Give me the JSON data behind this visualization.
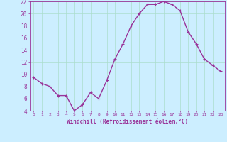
{
  "x": [
    0,
    1,
    2,
    3,
    4,
    5,
    6,
    7,
    8,
    9,
    10,
    11,
    12,
    13,
    14,
    15,
    16,
    17,
    18,
    19,
    20,
    21,
    22,
    23
  ],
  "y": [
    9.5,
    8.5,
    8.0,
    6.5,
    6.5,
    4.0,
    5.0,
    7.0,
    6.0,
    9.0,
    12.5,
    15.0,
    18.0,
    20.0,
    21.5,
    21.5,
    22.0,
    21.5,
    20.5,
    17.0,
    15.0,
    12.5,
    11.5,
    10.5
  ],
  "line_color": "#993399",
  "marker": "+",
  "bg_color": "#cceeff",
  "grid_color": "#aaddcc",
  "xlabel": "Windchill (Refroidissement éolien,°C)",
  "ylim": [
    4,
    22
  ],
  "yticks": [
    4,
    6,
    8,
    10,
    12,
    14,
    16,
    18,
    20,
    22
  ],
  "xticks": [
    0,
    1,
    2,
    3,
    4,
    5,
    6,
    7,
    8,
    9,
    10,
    11,
    12,
    13,
    14,
    15,
    16,
    17,
    18,
    19,
    20,
    21,
    22,
    23
  ],
  "label_color": "#993399",
  "tick_color": "#993399",
  "axis_color": "#993399",
  "line_width": 1.0,
  "marker_size": 3.5,
  "grid_lw": 0.5
}
